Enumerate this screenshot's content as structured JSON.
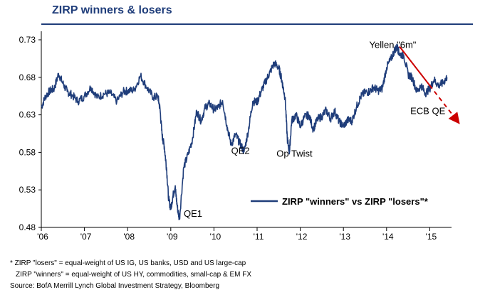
{
  "header": {
    "title": "ZIRP winners & losers"
  },
  "chart_data": {
    "type": "line",
    "title": "ZIRP winners & losers",
    "xlabel": "",
    "ylabel": "",
    "x_ticks": [
      "'06",
      "'07",
      "'08",
      "'09",
      "'10",
      "'11",
      "'12",
      "'13",
      "'14",
      "'15"
    ],
    "y_ticks": [
      "0.48",
      "0.53",
      "0.58",
      "0.63",
      "0.68",
      "0.73"
    ],
    "xlim": [
      2006.0,
      2016.0
    ],
    "ylim": [
      0.48,
      0.73
    ],
    "grid": false,
    "legend": {
      "placement": "lower-right",
      "label": "ZIRP \"winners\" vs ZIRP \"losers\"*"
    },
    "series": [
      {
        "name": "ZIRP \"winners\" vs ZIRP \"losers\"*",
        "color": "#1f3d7a",
        "x": [
          2006.0,
          2006.1,
          2006.2,
          2006.3,
          2006.4,
          2006.5,
          2006.6,
          2006.7,
          2006.85,
          2007.0,
          2007.15,
          2007.3,
          2007.45,
          2007.6,
          2007.75,
          2007.9,
          2008.0,
          2008.15,
          2008.3,
          2008.45,
          2008.6,
          2008.7,
          2008.75,
          2008.8,
          2008.85,
          2008.9,
          2008.95,
          2009.0,
          2009.05,
          2009.1,
          2009.15,
          2009.2,
          2009.3,
          2009.4,
          2009.5,
          2009.6,
          2009.7,
          2009.8,
          2009.9,
          2010.0,
          2010.1,
          2010.2,
          2010.3,
          2010.4,
          2010.5,
          2010.6,
          2010.7,
          2010.8,
          2010.9,
          2011.0,
          2011.1,
          2011.2,
          2011.3,
          2011.4,
          2011.5,
          2011.55,
          2011.6,
          2011.65,
          2011.7,
          2011.75,
          2011.8,
          2011.9,
          2012.0,
          2012.1,
          2012.2,
          2012.3,
          2012.4,
          2012.5,
          2012.6,
          2012.7,
          2012.8,
          2012.9,
          2013.0,
          2013.1,
          2013.2,
          2013.3,
          2013.4,
          2013.5,
          2013.6,
          2013.7,
          2013.8,
          2013.9,
          2014.0,
          2014.1,
          2014.2,
          2014.25,
          2014.3,
          2014.4,
          2014.5,
          2014.6,
          2014.7,
          2014.8,
          2014.9,
          2015.0,
          2015.1,
          2015.2,
          2015.3,
          2015.4
        ],
        "values": [
          0.64,
          0.655,
          0.662,
          0.665,
          0.685,
          0.672,
          0.661,
          0.657,
          0.648,
          0.655,
          0.667,
          0.653,
          0.658,
          0.659,
          0.648,
          0.661,
          0.662,
          0.663,
          0.682,
          0.666,
          0.653,
          0.655,
          0.638,
          0.602,
          0.588,
          0.56,
          0.518,
          0.505,
          0.522,
          0.534,
          0.508,
          0.491,
          0.56,
          0.577,
          0.597,
          0.635,
          0.622,
          0.64,
          0.645,
          0.637,
          0.64,
          0.649,
          0.616,
          0.59,
          0.604,
          0.592,
          0.581,
          0.61,
          0.648,
          0.647,
          0.662,
          0.675,
          0.687,
          0.699,
          0.693,
          0.682,
          0.668,
          0.652,
          0.598,
          0.58,
          0.622,
          0.63,
          0.615,
          0.627,
          0.63,
          0.611,
          0.624,
          0.628,
          0.636,
          0.625,
          0.635,
          0.621,
          0.615,
          0.623,
          0.622,
          0.64,
          0.654,
          0.66,
          0.661,
          0.667,
          0.662,
          0.665,
          0.693,
          0.704,
          0.718,
          0.72,
          0.711,
          0.709,
          0.684,
          0.679,
          0.661,
          0.669,
          0.659,
          0.665,
          0.677,
          0.669,
          0.672,
          0.68
        ]
      }
    ],
    "annotations": [
      {
        "text": "QE1",
        "x": 2009.3,
        "y": 0.494
      },
      {
        "text": "QE2",
        "x": 2010.4,
        "y": 0.578
      },
      {
        "text": "Op Twist",
        "x": 2011.45,
        "y": 0.574
      },
      {
        "text": "ECB QE",
        "x": 2014.55,
        "y": 0.631
      },
      {
        "text": "Yellen \"6m\"",
        "x": 2013.6,
        "y": 0.719
      }
    ],
    "trend_arrow": {
      "color": "#cc0000",
      "from": [
        2014.3,
        0.721
      ],
      "to": [
        2016.0,
        0.622
      ]
    }
  },
  "notes": [
    "* ZIRP \"losers\" = equal-weight of US IG, US banks, USD and US large-cap",
    "ZIRP \"winners\" = equal-weight of US HY, commodities, small-cap & EM FX",
    "Source: BofA Merrill Lynch Global Investment Strategy, Bloomberg"
  ]
}
